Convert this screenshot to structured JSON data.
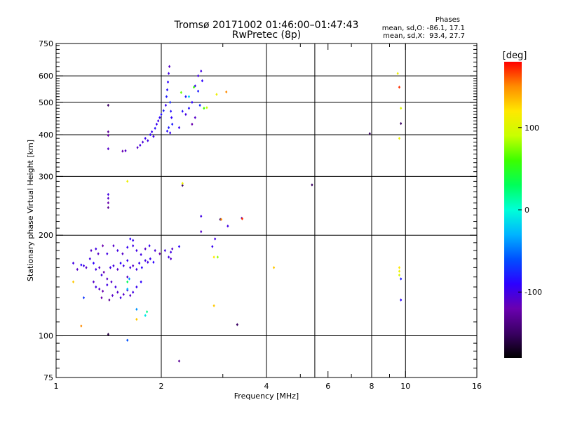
{
  "header": {
    "title": "Tromsø 20171002 01:46:00–01:47:43",
    "subtitle": "RwPretec (8p)"
  },
  "phases_box": {
    "heading": "Phases",
    "line_o": "mean, sd,O: -86.1, 17.1",
    "line_x": "mean, sd,X:  93.4, 27.7"
  },
  "colorbar": {
    "unit": "[deg]",
    "ticks": [
      {
        "v": 100,
        "label": "100"
      },
      {
        "v": 0,
        "label": "0"
      },
      {
        "v": -100,
        "label": "-100"
      }
    ],
    "range": [
      -180,
      180
    ],
    "colors": [
      "#000000",
      "#3a0063",
      "#6a00b0",
      "#2c00ff",
      "#0050ff",
      "#00b4ff",
      "#00ffd8",
      "#00ff5a",
      "#3cff00",
      "#c8ff00",
      "#ffe800",
      "#ff8c00",
      "#ff0000"
    ]
  },
  "chart_data": {
    "type": "scatter",
    "title": "Tromsø 20171002 01:46:00–01:47:43",
    "subtitle": "RwPretec (8p)",
    "xlabel": "Frequency [MHz]",
    "ylabel": "Stationary phase Virtual Height [km]",
    "xscale": "log",
    "yscale": "log",
    "xlim": [
      1,
      16
    ],
    "ylim": [
      75,
      750
    ],
    "xticks": [
      {
        "v": 1,
        "label": "1"
      },
      {
        "v": 2,
        "label": "2"
      },
      {
        "v": 4,
        "label": "4"
      },
      {
        "v": 6,
        "label": "6"
      },
      {
        "v": 8,
        "label": "8"
      },
      {
        "v": 10,
        "label": "10"
      },
      {
        "v": 16,
        "label": "16"
      }
    ],
    "xminor": [
      3,
      5,
      7,
      9
    ],
    "xgrid": [
      2,
      4,
      5.5,
      8,
      10
    ],
    "yticks": [
      {
        "v": 75,
        "label": "75"
      },
      {
        "v": 100,
        "label": "100"
      },
      {
        "v": 200,
        "label": "200"
      },
      {
        "v": 300,
        "label": "300"
      },
      {
        "v": 400,
        "label": "400"
      },
      {
        "v": 500,
        "label": "500"
      },
      {
        "v": 600,
        "label": "600"
      },
      {
        "v": 750,
        "label": "750"
      }
    ],
    "yminor": [
      80,
      85,
      90,
      95,
      110,
      120,
      130,
      140,
      150,
      160,
      170,
      180,
      190,
      210,
      220,
      230,
      240,
      250,
      260,
      270,
      280,
      290,
      310,
      320,
      330,
      340,
      350,
      360,
      370,
      380,
      390,
      410,
      420,
      430,
      440,
      450,
      460,
      470,
      480,
      490,
      510,
      520,
      530,
      540,
      550,
      560,
      570,
      580,
      590,
      620,
      640,
      660,
      680,
      700,
      720,
      740
    ],
    "ygrid": [
      100,
      200,
      300,
      400,
      500,
      600
    ],
    "color_scale": "phase [deg], -180 to 180",
    "points": [
      [
        1.41,
        490,
        -150
      ],
      [
        1.41,
        408,
        -130
      ],
      [
        1.41,
        398,
        -120
      ],
      [
        1.41,
        363,
        -110
      ],
      [
        1.55,
        357,
        -120
      ],
      [
        1.58,
        358,
        -110
      ],
      [
        1.71,
        366,
        -110
      ],
      [
        1.74,
        372,
        -100
      ],
      [
        1.77,
        380,
        -105
      ],
      [
        1.8,
        390,
        -95
      ],
      [
        1.83,
        384,
        -100
      ],
      [
        1.86,
        400,
        -90
      ],
      [
        1.88,
        408,
        -95
      ],
      [
        1.9,
        395,
        -100
      ],
      [
        1.92,
        418,
        -85
      ],
      [
        1.94,
        430,
        -95
      ],
      [
        1.96,
        440,
        -100
      ],
      [
        1.98,
        450,
        -90
      ],
      [
        2.0,
        460,
        -85
      ],
      [
        2.03,
        472,
        -80
      ],
      [
        2.06,
        490,
        -95
      ],
      [
        2.07,
        520,
        -80
      ],
      [
        2.08,
        545,
        -85
      ],
      [
        2.09,
        575,
        -90
      ],
      [
        2.1,
        610,
        -100
      ],
      [
        2.11,
        640,
        -110
      ],
      [
        2.12,
        500,
        -75
      ],
      [
        2.13,
        470,
        -85
      ],
      [
        2.14,
        450,
        -90
      ],
      [
        2.15,
        430,
        -80
      ],
      [
        2.1,
        420,
        -80
      ],
      [
        2.08,
        410,
        -85
      ],
      [
        2.12,
        405,
        -95
      ],
      [
        2.25,
        420,
        -95
      ],
      [
        2.3,
        470,
        -85
      ],
      [
        2.35,
        520,
        -80
      ],
      [
        2.4,
        480,
        -85
      ],
      [
        2.45,
        500,
        -90
      ],
      [
        2.5,
        560,
        -95
      ],
      [
        2.55,
        600,
        -100
      ],
      [
        2.6,
        620,
        -100
      ],
      [
        2.62,
        580,
        -90
      ],
      [
        2.5,
        450,
        -110
      ],
      [
        2.45,
        430,
        -120
      ],
      [
        2.35,
        460,
        -100
      ],
      [
        2.55,
        540,
        -80
      ],
      [
        2.58,
        490,
        -75
      ],
      [
        2.28,
        535,
        70
      ],
      [
        2.48,
        555,
        60
      ],
      [
        2.7,
        482,
        90
      ],
      [
        2.88,
        528,
        110
      ],
      [
        3.07,
        537,
        150
      ],
      [
        2.4,
        520,
        -20
      ],
      [
        2.65,
        480,
        60
      ],
      [
        1.41,
        265,
        -100
      ],
      [
        1.41,
        258,
        -110
      ],
      [
        1.41,
        250,
        -120
      ],
      [
        1.41,
        242,
        -130
      ],
      [
        1.6,
        290,
        110
      ],
      [
        2.3,
        282,
        -150
      ],
      [
        2.3,
        286,
        110
      ],
      [
        5.4,
        283,
        -150
      ],
      [
        7.9,
        403,
        -150
      ],
      [
        2.6,
        228,
        -100
      ],
      [
        2.6,
        205,
        -110
      ],
      [
        2.95,
        223,
        -150
      ],
      [
        2.97,
        223,
        150
      ],
      [
        3.1,
        213,
        -100
      ],
      [
        3.4,
        225,
        -110
      ],
      [
        3.41,
        224,
        170
      ],
      [
        2.85,
        195,
        -100
      ],
      [
        2.8,
        185,
        -95
      ],
      [
        2.83,
        172,
        120
      ],
      [
        2.9,
        172,
        80
      ],
      [
        2.25,
        185,
        -90
      ],
      [
        2.15,
        182,
        -110
      ],
      [
        2.13,
        178,
        -100
      ],
      [
        2.1,
        172,
        -100
      ],
      [
        2.13,
        170,
        -110
      ],
      [
        2.05,
        180,
        -100
      ],
      [
        1.12,
        165,
        -100
      ],
      [
        1.15,
        158,
        -110
      ],
      [
        1.18,
        163,
        -90
      ],
      [
        1.2,
        162,
        -100
      ],
      [
        1.22,
        160,
        -110
      ],
      [
        1.25,
        170,
        -100
      ],
      [
        1.28,
        165,
        -90
      ],
      [
        1.3,
        158,
        -100
      ],
      [
        1.33,
        160,
        -110
      ],
      [
        1.35,
        152,
        -100
      ],
      [
        1.37,
        155,
        -120
      ],
      [
        1.4,
        148,
        -110
      ],
      [
        1.43,
        160,
        -100
      ],
      [
        1.46,
        162,
        -100
      ],
      [
        1.5,
        158,
        -110
      ],
      [
        1.53,
        165,
        -90
      ],
      [
        1.56,
        162,
        -100
      ],
      [
        1.6,
        168,
        -95
      ],
      [
        1.63,
        160,
        -100
      ],
      [
        1.66,
        162,
        -110
      ],
      [
        1.7,
        158,
        -100
      ],
      [
        1.73,
        165,
        -95
      ],
      [
        1.76,
        160,
        -90
      ],
      [
        1.8,
        168,
        -100
      ],
      [
        1.83,
        166,
        -100
      ],
      [
        1.86,
        170,
        -95
      ],
      [
        1.9,
        166,
        -90
      ],
      [
        1.28,
        145,
        -110
      ],
      [
        1.3,
        140,
        -100
      ],
      [
        1.33,
        138,
        -110
      ],
      [
        1.36,
        136,
        -120
      ],
      [
        1.4,
        142,
        -100
      ],
      [
        1.44,
        145,
        -110
      ],
      [
        1.48,
        140,
        -100
      ],
      [
        1.5,
        135,
        -110
      ],
      [
        1.53,
        130,
        -100
      ],
      [
        1.56,
        133,
        -110
      ],
      [
        1.6,
        137,
        -100
      ],
      [
        1.63,
        132,
        -110
      ],
      [
        1.66,
        135,
        -100
      ],
      [
        1.7,
        140,
        -95
      ],
      [
        1.75,
        145,
        -90
      ],
      [
        1.45,
        132,
        -110
      ],
      [
        1.42,
        128,
        -130
      ],
      [
        1.35,
        130,
        -120
      ],
      [
        1.26,
        180,
        -110
      ],
      [
        1.3,
        182,
        -100
      ],
      [
        1.32,
        176,
        -110
      ],
      [
        1.36,
        186,
        -120
      ],
      [
        1.4,
        176,
        -100
      ],
      [
        1.46,
        186,
        -110
      ],
      [
        1.5,
        180,
        -100
      ],
      [
        1.55,
        176,
        -110
      ],
      [
        1.6,
        184,
        -95
      ],
      [
        1.63,
        195,
        -90
      ],
      [
        1.66,
        193,
        -95
      ],
      [
        1.66,
        186,
        -100
      ],
      [
        1.7,
        180,
        -100
      ],
      [
        1.75,
        175,
        -100
      ],
      [
        1.8,
        182,
        -110
      ],
      [
        1.85,
        186,
        -95
      ],
      [
        1.92,
        180,
        -105
      ],
      [
        1.98,
        176,
        -120
      ],
      [
        1.12,
        145,
        130
      ],
      [
        1.2,
        130,
        -70
      ],
      [
        1.6,
        150,
        -110
      ],
      [
        1.62,
        148,
        -40
      ],
      [
        1.6,
        145,
        30
      ],
      [
        1.6,
        138,
        -30
      ],
      [
        1.7,
        120,
        -40
      ],
      [
        1.8,
        115,
        -10
      ],
      [
        1.82,
        118,
        20
      ],
      [
        1.7,
        112,
        130
      ],
      [
        1.18,
        107,
        150
      ],
      [
        1.41,
        101,
        -160
      ],
      [
        1.6,
        97,
        -60
      ],
      [
        2.25,
        84,
        -130
      ],
      [
        2.83,
        123,
        130
      ],
      [
        3.3,
        108,
        -150
      ],
      [
        4.2,
        160,
        130
      ],
      [
        9.5,
        610,
        110
      ],
      [
        9.6,
        555,
        170
      ],
      [
        9.7,
        480,
        100
      ],
      [
        9.7,
        432,
        -150
      ],
      [
        9.6,
        390,
        110
      ],
      [
        9.6,
        160,
        120
      ],
      [
        9.6,
        156,
        110
      ],
      [
        9.6,
        152,
        100
      ],
      [
        9.7,
        148,
        -80
      ],
      [
        9.7,
        128,
        -90
      ]
    ]
  }
}
